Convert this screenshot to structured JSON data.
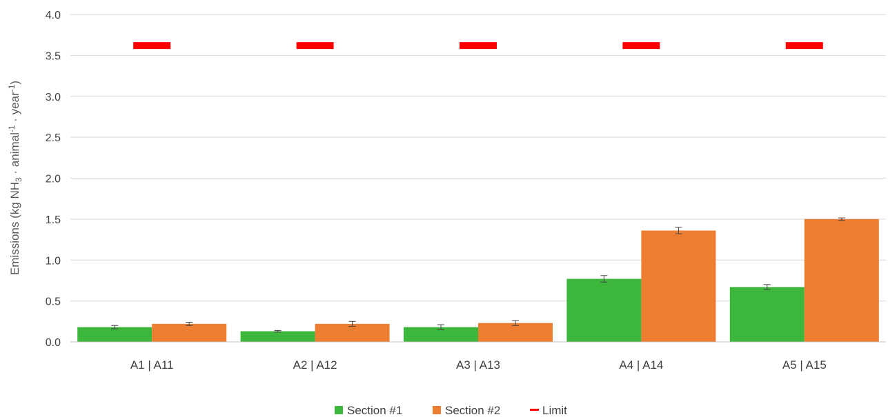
{
  "chart_data": {
    "type": "bar",
    "title": "",
    "xlabel": "",
    "ylabel": {
      "prefix": "Emissions (kg NH",
      "sub": "3",
      "mid1": " · animal",
      "sup1": "-1",
      "mid2": " · year",
      "sup2": "-1",
      "suffix": ")"
    },
    "ylim": [
      0,
      4.0
    ],
    "yticks": [
      "0.0",
      "0.5",
      "1.0",
      "1.5",
      "2.0",
      "2.5",
      "3.0",
      "3.5",
      "4.0"
    ],
    "ytick_values": [
      0,
      0.5,
      1.0,
      1.5,
      2.0,
      2.5,
      3.0,
      3.5,
      4.0
    ],
    "grid": true,
    "legend_position": "bottom",
    "categories": [
      "A1 | A11",
      "A2 | A12",
      "A3 | A13",
      "A4 | A14",
      "A5 | A15"
    ],
    "series": [
      {
        "name": "Section #1",
        "color": "#3cb63b",
        "values": [
          0.18,
          0.13,
          0.18,
          0.77,
          0.67
        ],
        "errors": [
          0.02,
          0.01,
          0.03,
          0.04,
          0.03
        ]
      },
      {
        "name": "Section #2",
        "color": "#ed7d31",
        "values": [
          0.22,
          0.22,
          0.23,
          1.36,
          1.5
        ],
        "errors": [
          0.02,
          0.03,
          0.03,
          0.04,
          0.015
        ]
      }
    ],
    "limit": {
      "name": "Limit",
      "color": "#ff0000",
      "values": [
        3.62,
        3.62,
        3.62,
        3.62,
        3.62
      ]
    }
  }
}
